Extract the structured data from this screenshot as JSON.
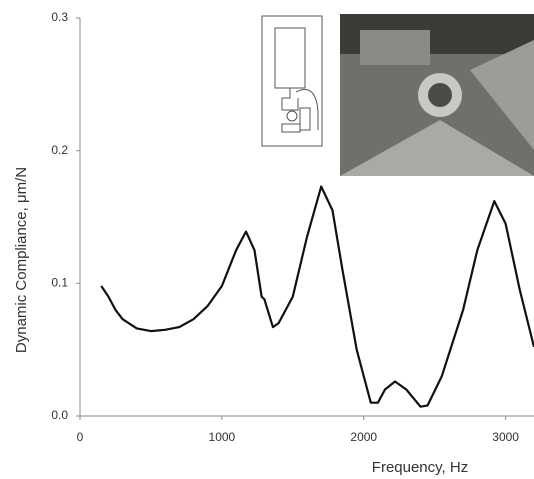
{
  "chart_data": {
    "type": "line",
    "x_label": "Frequency, Hz",
    "y_label": "Dynamic Compliance, μm/N",
    "xlim": [
      0,
      3200
    ],
    "xticks": [
      0,
      1000,
      2000,
      3000
    ],
    "ylim": [
      0,
      0.3
    ],
    "yticks": [
      {
        "value": 0,
        "label": "0.0"
      },
      0.1,
      0.2,
      0.3
    ],
    "x": [
      150,
      200,
      250,
      300,
      400,
      500,
      600,
      700,
      800,
      900,
      1000,
      1100,
      1170,
      1230,
      1280,
      1300,
      1360,
      1400,
      1500,
      1600,
      1700,
      1780,
      1850,
      1950,
      2050,
      2100,
      2150,
      2220,
      2300,
      2400,
      2450,
      2550,
      2700,
      2800,
      2920,
      3000,
      3100,
      3200
    ],
    "series": [
      {
        "color": "#111111",
        "values": [
          0.098,
          0.09,
          0.08,
          0.073,
          0.066,
          0.064,
          0.065,
          0.067,
          0.073,
          0.083,
          0.098,
          0.125,
          0.139,
          0.125,
          0.09,
          0.088,
          0.067,
          0.07,
          0.09,
          0.135,
          0.173,
          0.155,
          0.11,
          0.05,
          0.01,
          0.01,
          0.02,
          0.026,
          0.02,
          0.007,
          0.008,
          0.03,
          0.08,
          0.125,
          0.162,
          0.145,
          0.095,
          0.052
        ]
      }
    ]
  }
}
